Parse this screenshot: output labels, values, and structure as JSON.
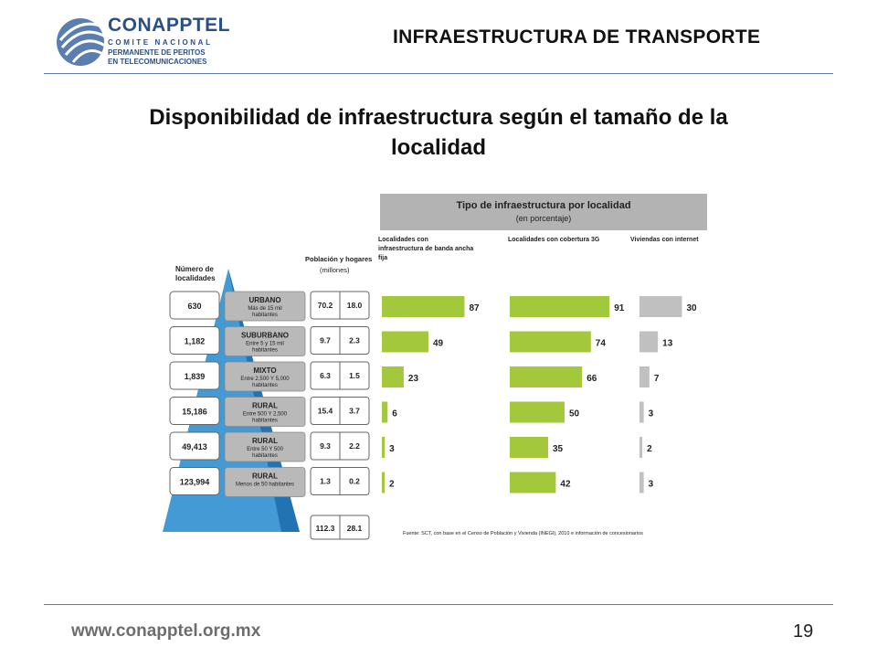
{
  "header": {
    "logo": {
      "name": "CONAPPTEL",
      "line1": "COMITE NACIONAL",
      "line2": "PERMANENTE DE PERITOS",
      "line3": "EN TELECOMUNICACIONES"
    },
    "section_title": "INFRAESTRUCTURA DE TRANSPORTE"
  },
  "slide_title": "Disponibilidad de infraestructura según el tamaño de la localidad",
  "footer": {
    "url": "www.conapptel.org.mx",
    "page": "19"
  },
  "colors": {
    "green": "#a3c83c",
    "gray_bar": "#c0c0c0",
    "pyramid": "#2f8fcf",
    "category_box": "#b9b9b9",
    "rule": "#5a7ea4"
  },
  "chart_data": {
    "type": "bar",
    "title": "Tipo de infraestructura por localidad",
    "subtitle": "(en porcentaje)",
    "left_headers": {
      "localities": "Número de localidades",
      "population": "Población y hogares",
      "population_unit": "(millones)"
    },
    "categories": [
      {
        "name": "URBANO",
        "desc": "Más de 15 mil habitantes"
      },
      {
        "name": "SUBURBANO",
        "desc": "Entre 5 y 15 mil habitantes"
      },
      {
        "name": "MIXTO",
        "desc": "Entre 2,500 Y 5,000 habitantes"
      },
      {
        "name": "RURAL",
        "desc": "Entre 500 Y 2,500 habitantes"
      },
      {
        "name": "RURAL",
        "desc": "Entre 50 Y 500 habitantes"
      },
      {
        "name": "RURAL",
        "desc": "Menos de 50 habitantes"
      }
    ],
    "localities": [
      "630",
      "1,182",
      "1,839",
      "15,186",
      "49,413",
      "123,994"
    ],
    "population": [
      "70.2",
      "9.7",
      "6.3",
      "15.4",
      "9.3",
      "1.3"
    ],
    "households": [
      "18.0",
      "2.3",
      "1.5",
      "3.7",
      "2.2",
      "0.2"
    ],
    "totals": {
      "population": "112.3",
      "households": "28.1"
    },
    "series": [
      {
        "name": "Localidades con infraestructura de banda ancha fija",
        "values": [
          87,
          49,
          23,
          6,
          3,
          2
        ]
      },
      {
        "name": "Localidades con cobertura 3G",
        "values": [
          91,
          74,
          66,
          50,
          35,
          42
        ]
      },
      {
        "name": "Viviendas con internet",
        "values": [
          30,
          13,
          7,
          3,
          2,
          3
        ]
      }
    ],
    "source": "Fuente: SCT, con base en el Censo de Población y Vivienda (INEGI), 2010 e información de concesionarios"
  }
}
